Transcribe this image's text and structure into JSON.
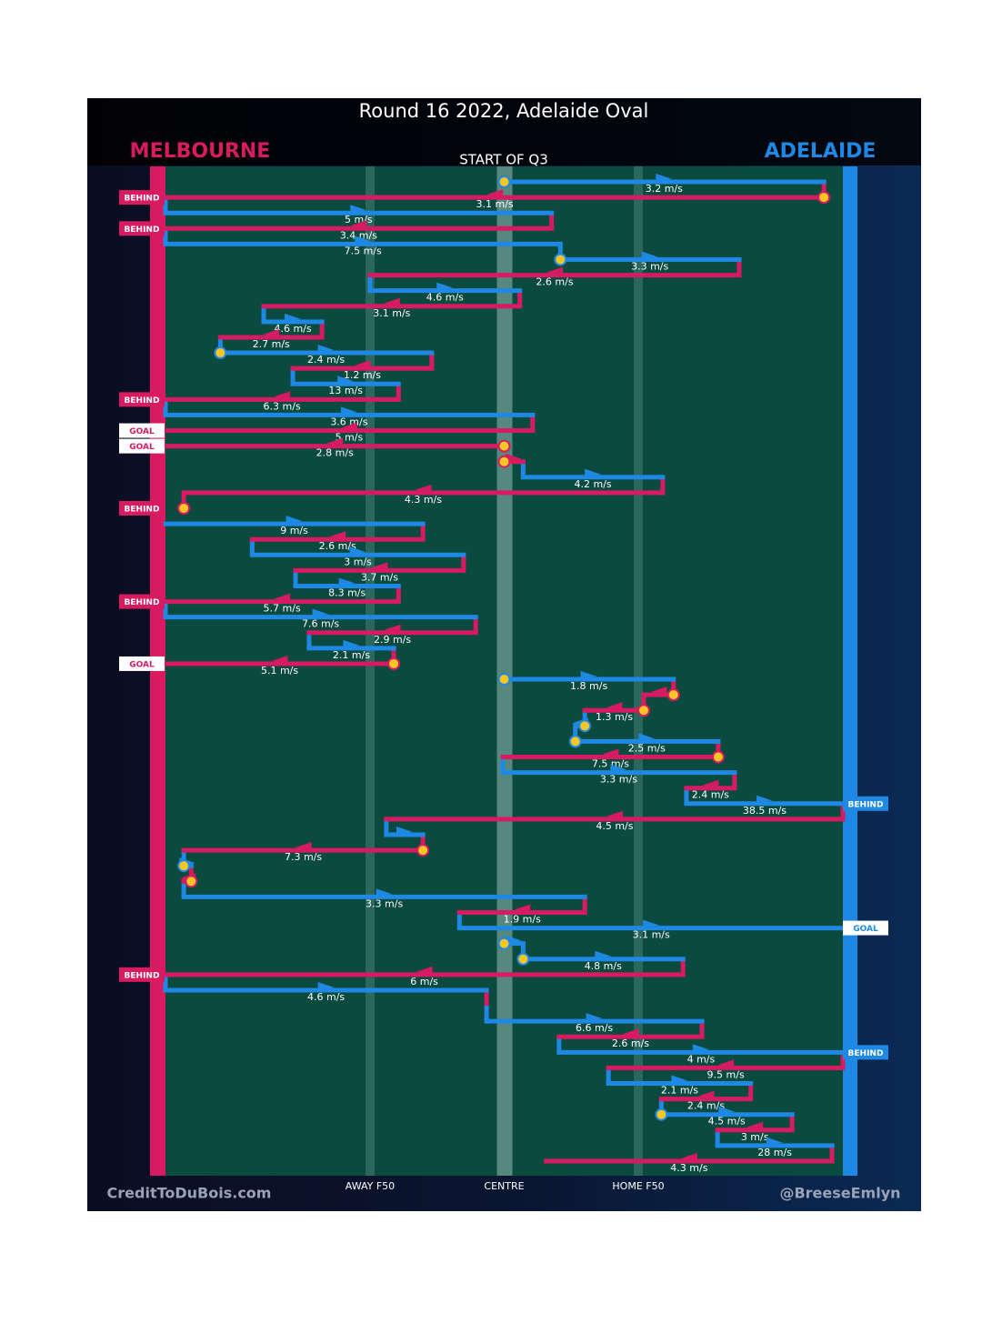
{
  "chart_data": {
    "type": "possession-flow",
    "title": "Round 16 2022, Adelaide Oval",
    "subtitle": "START OF Q3",
    "series": [
      {
        "name": "MELBOURNE",
        "color": "#d81b60"
      },
      {
        "name": "ADELAIDE",
        "color": "#1e88e5"
      }
    ],
    "xlim": [
      0,
      100
    ],
    "xticks": [
      {
        "value": 30.2,
        "label": "AWAY F50"
      },
      {
        "value": 50,
        "label": "CENTRE"
      },
      {
        "value": 69.8,
        "label": "HOME F50"
      }
    ],
    "footer_left": "CreditToDuBois.com",
    "footer_right": "@BreeseEmlyn",
    "rows": [
      {
        "team": 1,
        "from": 50,
        "to": 97.2,
        "speed": "3.2 m/s",
        "ball_up": true
      },
      {
        "team": 0,
        "from": 97.2,
        "to": 0,
        "speed": "3.1 m/s",
        "result": "BEHIND",
        "ball_up": true
      },
      {
        "team": 1,
        "from": 0,
        "to": 57.0,
        "speed": "5 m/s"
      },
      {
        "team": 0,
        "from": 57.0,
        "to": 0,
        "speed": "3.4 m/s",
        "result": "BEHIND"
      },
      {
        "team": 1,
        "from": 0,
        "to": 58.3,
        "speed": "7.5 m/s"
      },
      {
        "team": 1,
        "from": 58.3,
        "to": 84.7,
        "speed": "3.3 m/s",
        "ball_up": true
      },
      {
        "team": 0,
        "from": 84.7,
        "to": 30.2,
        "speed": "2.6 m/s"
      },
      {
        "team": 1,
        "from": 30.2,
        "to": 52.3,
        "speed": "4.6 m/s"
      },
      {
        "team": 0,
        "from": 52.3,
        "to": 14.5,
        "speed": "3.1 m/s"
      },
      {
        "team": 1,
        "from": 14.5,
        "to": 23.1,
        "speed": "4.6 m/s"
      },
      {
        "team": 0,
        "from": 23.1,
        "to": 8.1,
        "speed": "2.7 m/s"
      },
      {
        "team": 1,
        "from": 8.1,
        "to": 39.3,
        "speed": "2.4 m/s",
        "ball_up": true
      },
      {
        "team": 0,
        "from": 39.3,
        "to": 18.8,
        "speed": "1.2 m/s"
      },
      {
        "team": 1,
        "from": 18.8,
        "to": 34.4,
        "speed": "13 m/s"
      },
      {
        "team": 0,
        "from": 34.4,
        "to": 0,
        "speed": "6.3 m/s",
        "result": "BEHIND"
      },
      {
        "team": 1,
        "from": 0,
        "to": 54.2,
        "speed": "3.6 m/s"
      },
      {
        "team": 0,
        "from": 54.2,
        "to": 0,
        "speed": "5 m/s",
        "result": "GOAL"
      },
      {
        "team": 0,
        "from": 50,
        "to": 0,
        "speed": "2.8 m/s",
        "result": "GOAL",
        "ball_up": true
      },
      {
        "team": 0,
        "from": 50,
        "to": 52.8,
        "ball_up": true
      },
      {
        "team": 1,
        "from": 52.8,
        "to": 73.4,
        "speed": "4.2 m/s"
      },
      {
        "team": 0,
        "from": 73.4,
        "to": 2.7,
        "speed": "4.3 m/s"
      },
      {
        "team": 0,
        "from": 2.7,
        "to": 2.7,
        "result": "BEHIND",
        "ball_up": true
      },
      {
        "team": 1,
        "from": 0,
        "to": 38.0,
        "speed": "9 m/s"
      },
      {
        "team": 0,
        "from": 38.0,
        "to": 12.8,
        "speed": "2.6 m/s"
      },
      {
        "team": 1,
        "from": 12.8,
        "to": 44.0,
        "speed": "3 m/s"
      },
      {
        "team": 0,
        "from": 44.0,
        "to": 19.2,
        "speed": "3.7 m/s"
      },
      {
        "team": 1,
        "from": 19.2,
        "to": 34.4,
        "speed": "8.3 m/s"
      },
      {
        "team": 0,
        "from": 34.4,
        "to": 0,
        "speed": "5.7 m/s",
        "result": "BEHIND"
      },
      {
        "team": 1,
        "from": 0,
        "to": 45.8,
        "speed": "7.6 m/s"
      },
      {
        "team": 0,
        "from": 45.8,
        "to": 21.2,
        "speed": "2.9 m/s"
      },
      {
        "team": 1,
        "from": 21.2,
        "to": 33.7,
        "speed": "2.1 m/s"
      },
      {
        "team": 0,
        "from": 33.7,
        "to": 0,
        "speed": "5.1 m/s",
        "result": "GOAL",
        "ball_up": true
      },
      {
        "team": 1,
        "from": 50,
        "to": 75.0,
        "speed": "1.8 m/s",
        "ball_up": true
      },
      {
        "team": 0,
        "from": 75.0,
        "to": 70.6,
        "ball_up": true
      },
      {
        "team": 0,
        "from": 70.6,
        "to": 61.9,
        "speed": "1.3 m/s",
        "ball_up": true
      },
      {
        "team": 1,
        "from": 61.9,
        "to": 60.5,
        "ball_up": true
      },
      {
        "team": 1,
        "from": 60.5,
        "to": 81.6,
        "speed": "2.5 m/s",
        "ball_up": true
      },
      {
        "team": 0,
        "from": 81.6,
        "to": 49.8,
        "speed": "7.5 m/s",
        "ball_up": true
      },
      {
        "team": 1,
        "from": 49.8,
        "to": 84.0,
        "speed": "3.3 m/s"
      },
      {
        "team": 0,
        "from": 84.0,
        "to": 76.9,
        "speed": "2.4 m/s"
      },
      {
        "team": 1,
        "from": 76.9,
        "to": 100,
        "speed": "38.5 m/s",
        "result": "BEHIND"
      },
      {
        "team": 0,
        "from": 100,
        "to": 32.6,
        "speed": "4.5 m/s"
      },
      {
        "team": 1,
        "from": 32.6,
        "to": 38.0
      },
      {
        "team": 0,
        "from": 38.0,
        "to": 2.7,
        "speed": "7.3 m/s",
        "ball_up": true
      },
      {
        "team": 1,
        "from": 2.7,
        "to": 3.8,
        "ball_up": true
      },
      {
        "team": 0,
        "from": 3.8,
        "to": 2.7,
        "ball_up": true
      },
      {
        "team": 1,
        "from": 2.7,
        "to": 61.9,
        "speed": "3.3 m/s"
      },
      {
        "team": 0,
        "from": 61.9,
        "to": 43.4,
        "speed": "1.9 m/s"
      },
      {
        "team": 1,
        "from": 43.4,
        "to": 100,
        "speed": "3.1 m/s",
        "result": "GOAL"
      },
      {
        "team": 1,
        "from": 50,
        "to": 52.8,
        "ball_up": true
      },
      {
        "team": 1,
        "from": 52.8,
        "to": 76.4,
        "speed": "4.8 m/s",
        "ball_up": true
      },
      {
        "team": 0,
        "from": 76.4,
        "to": 0,
        "speed": "6 m/s",
        "result": "BEHIND"
      },
      {
        "team": 1,
        "from": 0,
        "to": 47.4,
        "speed": "4.6 m/s"
      },
      {
        "team": 0,
        "from": 47.4,
        "to": 47.4
      },
      {
        "team": 1,
        "from": 47.4,
        "to": 79.2,
        "speed": "6.6 m/s"
      },
      {
        "team": 0,
        "from": 79.2,
        "to": 58.1,
        "speed": "2.6 m/s"
      },
      {
        "team": 1,
        "from": 58.1,
        "to": 100,
        "speed": "4 m/s",
        "result": "BEHIND"
      },
      {
        "team": 0,
        "from": 100,
        "to": 65.4,
        "speed": "9.5 m/s"
      },
      {
        "team": 1,
        "from": 65.4,
        "to": 86.4,
        "speed": "2.1 m/s"
      },
      {
        "team": 0,
        "from": 86.4,
        "to": 73.2,
        "speed": "2.4 m/s"
      },
      {
        "team": 1,
        "from": 73.2,
        "to": 92.5,
        "speed": "4.5 m/s",
        "ball_up": true
      },
      {
        "team": 0,
        "from": 92.5,
        "to": 81.5,
        "speed": "3 m/s"
      },
      {
        "team": 1,
        "from": 81.5,
        "to": 98.4,
        "speed": "28 m/s"
      },
      {
        "team": 0,
        "from": 98.4,
        "to": 56.2,
        "speed": "4.3 m/s"
      }
    ]
  }
}
